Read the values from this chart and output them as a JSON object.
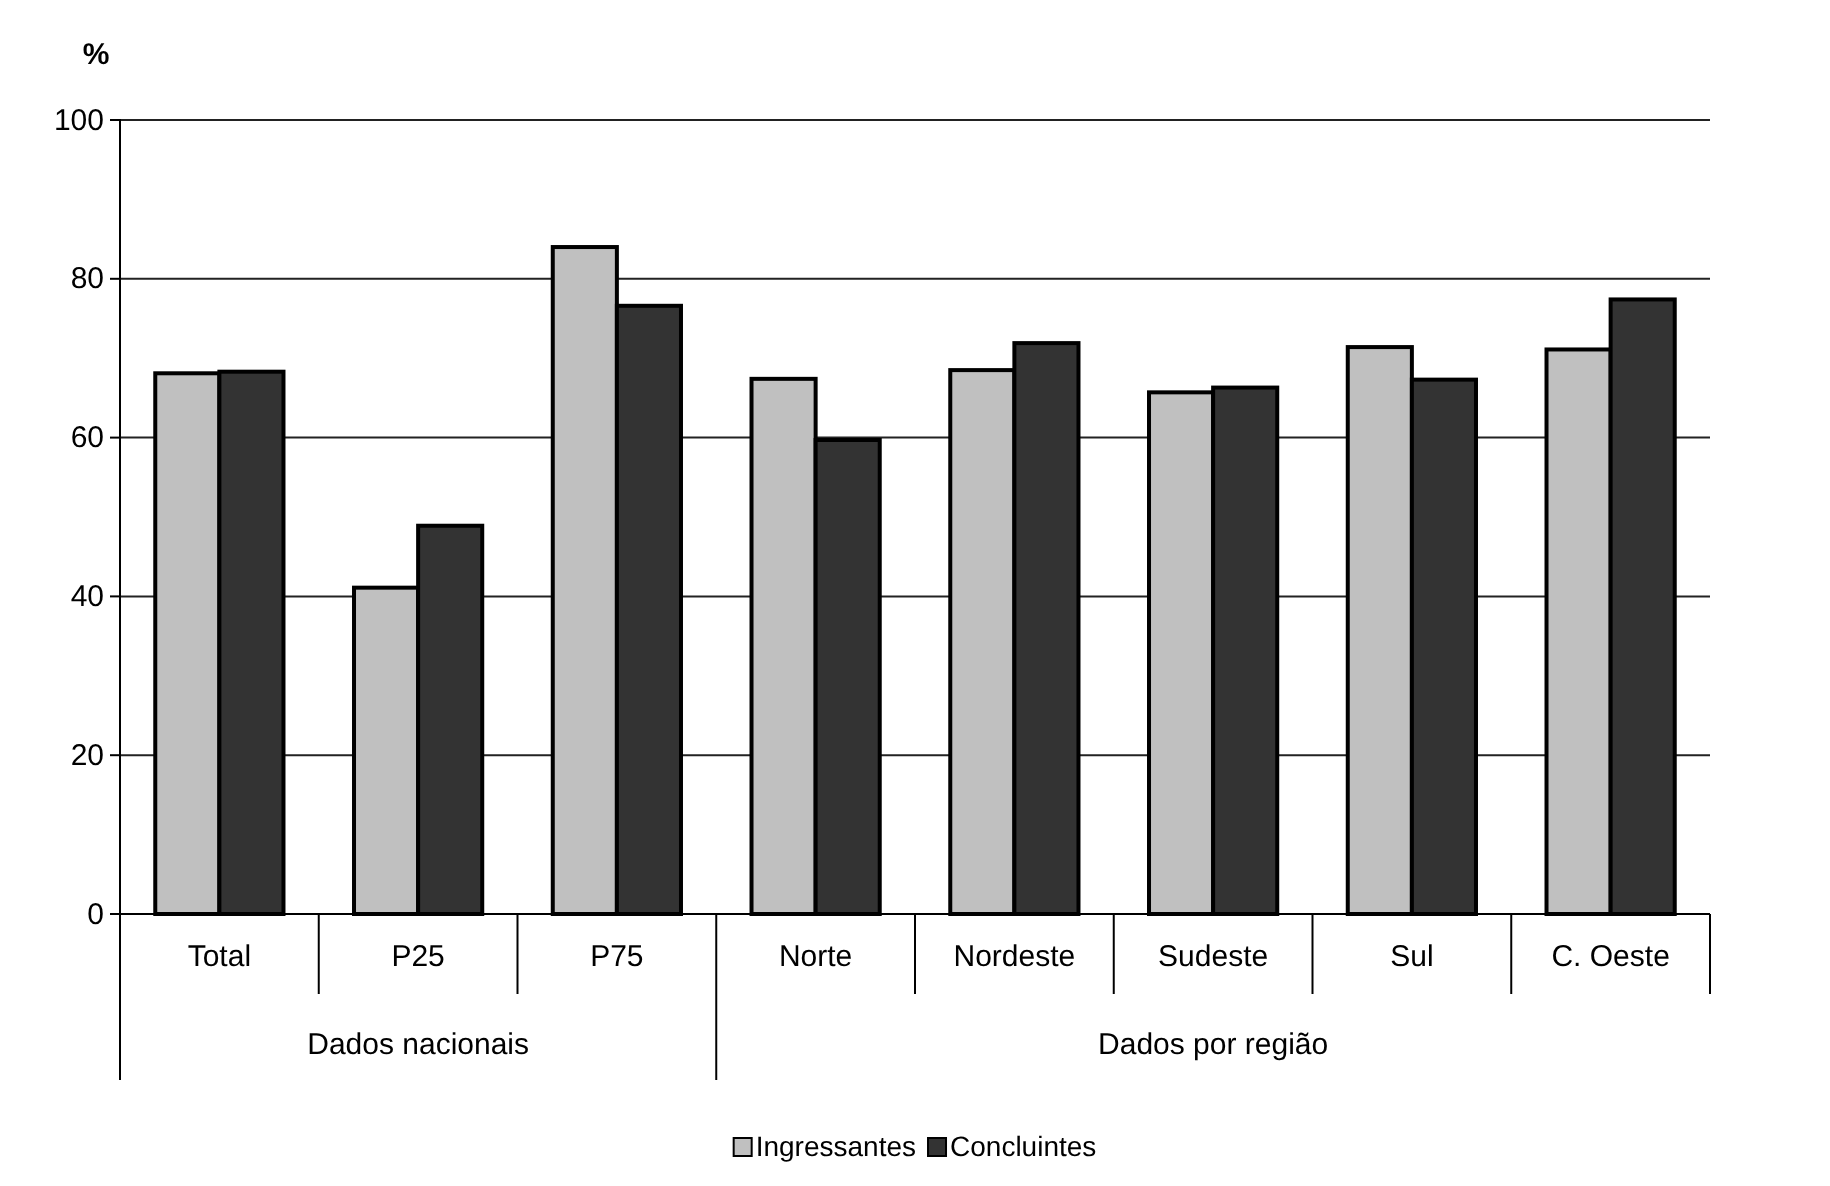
{
  "chart_data": {
    "type": "bar",
    "ylabel": "%",
    "categories": [
      "Total",
      "P25",
      "P75",
      "Norte",
      "Nordeste",
      "Sudeste",
      "Sul",
      "C. Oeste"
    ],
    "series": [
      {
        "name": "Ingressantes",
        "color": "#c0c0c0",
        "values": [
          68.1,
          41.1,
          84.0,
          67.4,
          68.5,
          65.7,
          71.4,
          71.1
        ]
      },
      {
        "name": "Concluintes",
        "color": "#333333",
        "values": [
          68.3,
          48.9,
          76.6,
          59.7,
          71.9,
          66.3,
          67.3,
          77.4
        ]
      }
    ],
    "ylim": [
      0,
      100
    ],
    "yticks": [
      0,
      20,
      40,
      60,
      80,
      100
    ],
    "grid": "y",
    "legend": "bottom",
    "annotations": [
      "Dados nacionais",
      "Dados por região"
    ]
  }
}
